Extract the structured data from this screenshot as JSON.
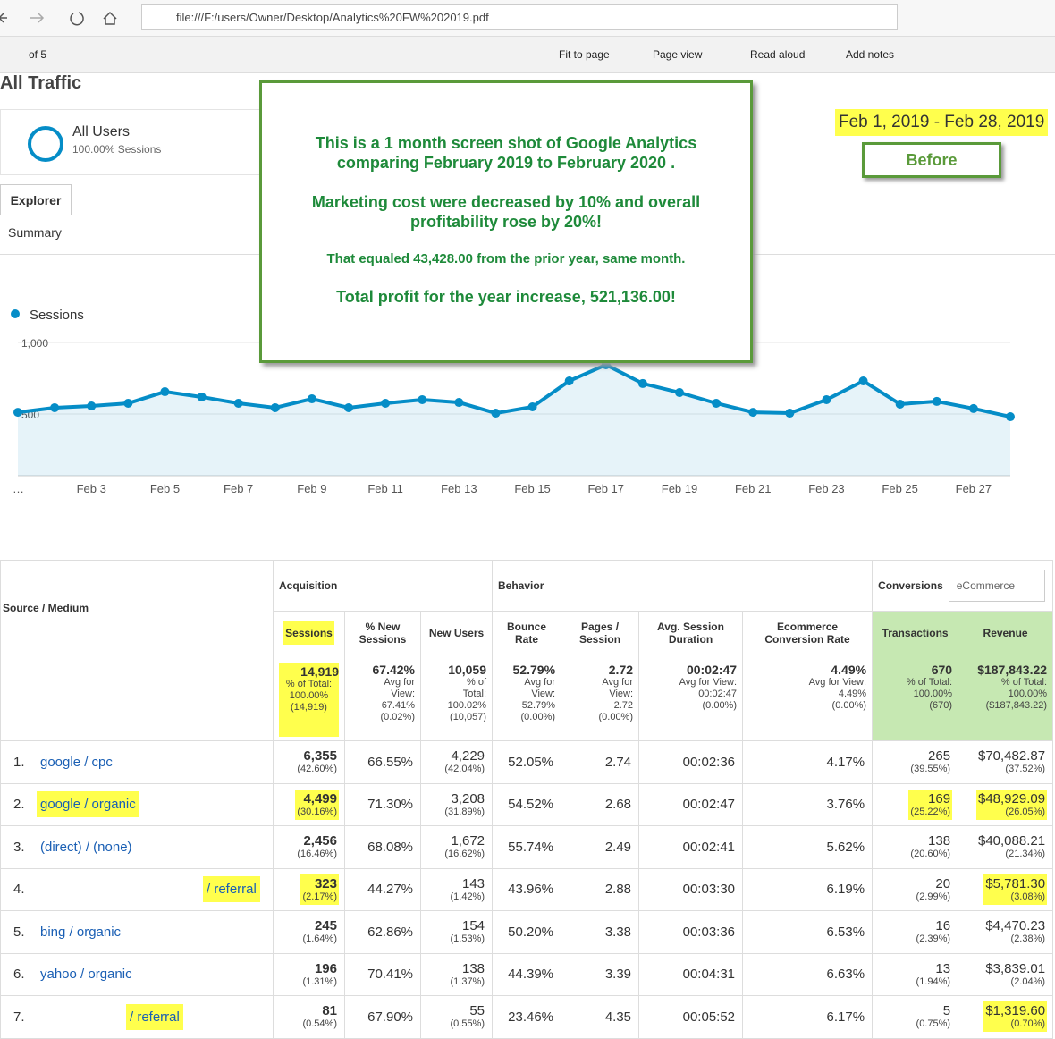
{
  "browser": {
    "url": "file:///F:/users/Owner/Desktop/Analytics%20FW%202019.pdf"
  },
  "toolbar": {
    "page_count": "of 5",
    "fit": "Fit to page",
    "page_view": "Page view",
    "read_aloud": "Read aloud",
    "add_notes": "Add notes"
  },
  "report": {
    "title": "All Traffic",
    "segment": "All Users",
    "segment_sub": "100.00% Sessions",
    "tab": "Explorer",
    "subtab": "Summary",
    "date_range": "Feb 1, 2019 - Feb 28, 2019",
    "badge": "Before"
  },
  "note": {
    "lines": [
      "This is a 1 month screen shot of Google Analytics",
      "comparing February 2019 to February 2020 .",
      "Marketing cost were decreased by 10% and overall",
      "profitability rose by 20%!",
      "That equaled 43,428.00 from the prior year, same month.",
      "Total profit for the year increase, 521,136.00!"
    ]
  },
  "chart_data": {
    "type": "line",
    "categories": [
      "…",
      null,
      "Feb 3",
      null,
      "Feb 5",
      null,
      "Feb 7",
      null,
      "Feb 9",
      null,
      "Feb 11",
      null,
      "Feb 13",
      null,
      "Feb 15",
      null,
      "Feb 17",
      null,
      "Feb 19",
      null,
      "Feb 21",
      null,
      "Feb 23",
      null,
      "Feb 25",
      null,
      "Feb 27",
      null
    ],
    "series": [
      {
        "name": "Sessions",
        "color": "#058dc7",
        "values": [
          512,
          544,
          556,
          575,
          656,
          619,
          575,
          544,
          606,
          544,
          575,
          600,
          581,
          506,
          550,
          731,
          844,
          713,
          650,
          575,
          512,
          506,
          600,
          731,
          569,
          588,
          538,
          481
        ]
      }
    ],
    "ylim": [
      0,
      1000
    ],
    "yticks": [
      500,
      {
        "value": 1000,
        "label": "1,000"
      }
    ],
    "grid": true
  },
  "table": {
    "dimension_header": "Source / Medium",
    "groups": [
      "Acquisition",
      "Behavior",
      "Conversions"
    ],
    "conversion_select": "eCommerce",
    "columns": [
      "Sessions",
      "% New Sessions",
      "New Users",
      "Bounce Rate",
      "Pages / Session",
      "Avg. Session Duration",
      "Ecommerce Conversion Rate",
      "Transactions",
      "Revenue"
    ],
    "totals": [
      {
        "main": "14,919",
        "sub": [
          "% of Total:",
          "100.00%",
          "(14,919)"
        ]
      },
      {
        "main": "67.42%",
        "sub": [
          "Avg for",
          "View:",
          "67.41%",
          "(0.02%)"
        ]
      },
      {
        "main": "10,059",
        "sub": [
          "% of",
          "Total:",
          "100.02%",
          "(10,057)"
        ]
      },
      {
        "main": "52.79%",
        "sub": [
          "Avg for",
          "View:",
          "52.79%",
          "(0.00%)"
        ]
      },
      {
        "main": "2.72",
        "sub": [
          "Avg for",
          "View:",
          "2.72",
          "(0.00%)"
        ]
      },
      {
        "main": "00:02:47",
        "sub": [
          "Avg for View:",
          "00:02:47",
          "(0.00%)"
        ]
      },
      {
        "main": "4.49%",
        "sub": [
          "Avg for View:",
          "4.49%",
          "(0.00%)"
        ]
      },
      {
        "main": "670",
        "sub": [
          "% of Total:",
          "100.00%",
          "(670)"
        ]
      },
      {
        "main": "$187,843.22",
        "sub": [
          "% of Total:",
          "100.00%",
          "($187,843.22)"
        ]
      }
    ],
    "rows": [
      {
        "rank": "1.",
        "source": "google / cpc",
        "cells": [
          [
            "6,355",
            "(42.60%)"
          ],
          [
            "66.55%"
          ],
          [
            "4,229",
            "(42.04%)"
          ],
          [
            "52.05%"
          ],
          [
            "2.74"
          ],
          [
            "00:02:36"
          ],
          [
            "4.17%"
          ],
          [
            "265",
            "(39.55%)"
          ],
          [
            "$70,482.87",
            "(37.52%)"
          ]
        ]
      },
      {
        "rank": "2.",
        "source": "google / organic",
        "cells": [
          [
            "4,499",
            "(30.16%)"
          ],
          [
            "71.30%"
          ],
          [
            "3,208",
            "(31.89%)"
          ],
          [
            "54.52%"
          ],
          [
            "2.68"
          ],
          [
            "00:02:47"
          ],
          [
            "3.76%"
          ],
          [
            "169",
            "(25.22%)"
          ],
          [
            "$48,929.09",
            "(26.05%)"
          ]
        ]
      },
      {
        "rank": "3.",
        "source": "(direct) / (none)",
        "cells": [
          [
            "2,456",
            "(16.46%)"
          ],
          [
            "68.08%"
          ],
          [
            "1,672",
            "(16.62%)"
          ],
          [
            "55.74%"
          ],
          [
            "2.49"
          ],
          [
            "00:02:41"
          ],
          [
            "5.62%"
          ],
          [
            "138",
            "(20.60%)"
          ],
          [
            "$40,088.21",
            "(21.34%)"
          ]
        ]
      },
      {
        "rank": "4.",
        "source": "/ referral",
        "cells": [
          [
            "323",
            "(2.17%)"
          ],
          [
            "44.27%"
          ],
          [
            "143",
            "(1.42%)"
          ],
          [
            "43.96%"
          ],
          [
            "2.88"
          ],
          [
            "00:03:30"
          ],
          [
            "6.19%"
          ],
          [
            "20",
            "(2.99%)"
          ],
          [
            "$5,781.30",
            "(3.08%)"
          ]
        ]
      },
      {
        "rank": "5.",
        "source": "bing / organic",
        "cells": [
          [
            "245",
            "(1.64%)"
          ],
          [
            "62.86%"
          ],
          [
            "154",
            "(1.53%)"
          ],
          [
            "50.20%"
          ],
          [
            "3.38"
          ],
          [
            "00:03:36"
          ],
          [
            "6.53%"
          ],
          [
            "16",
            "(2.39%)"
          ],
          [
            "$4,470.23",
            "(2.38%)"
          ]
        ]
      },
      {
        "rank": "6.",
        "source": "yahoo / organic",
        "cells": [
          [
            "196",
            "(1.31%)"
          ],
          [
            "70.41%"
          ],
          [
            "138",
            "(1.37%)"
          ],
          [
            "44.39%"
          ],
          [
            "3.39"
          ],
          [
            "00:04:31"
          ],
          [
            "6.63%"
          ],
          [
            "13",
            "(1.94%)"
          ],
          [
            "$3,839.01",
            "(2.04%)"
          ]
        ]
      },
      {
        "rank": "7.",
        "source": "/ referral",
        "cells": [
          [
            "81",
            "(0.54%)"
          ],
          [
            "67.90%"
          ],
          [
            "55",
            "(0.55%)"
          ],
          [
            "23.46%"
          ],
          [
            "4.35"
          ],
          [
            "00:05:52"
          ],
          [
            "6.17%"
          ],
          [
            "5",
            "(0.75%)"
          ],
          [
            "$1,319.60",
            "(0.70%)"
          ]
        ]
      }
    ]
  }
}
